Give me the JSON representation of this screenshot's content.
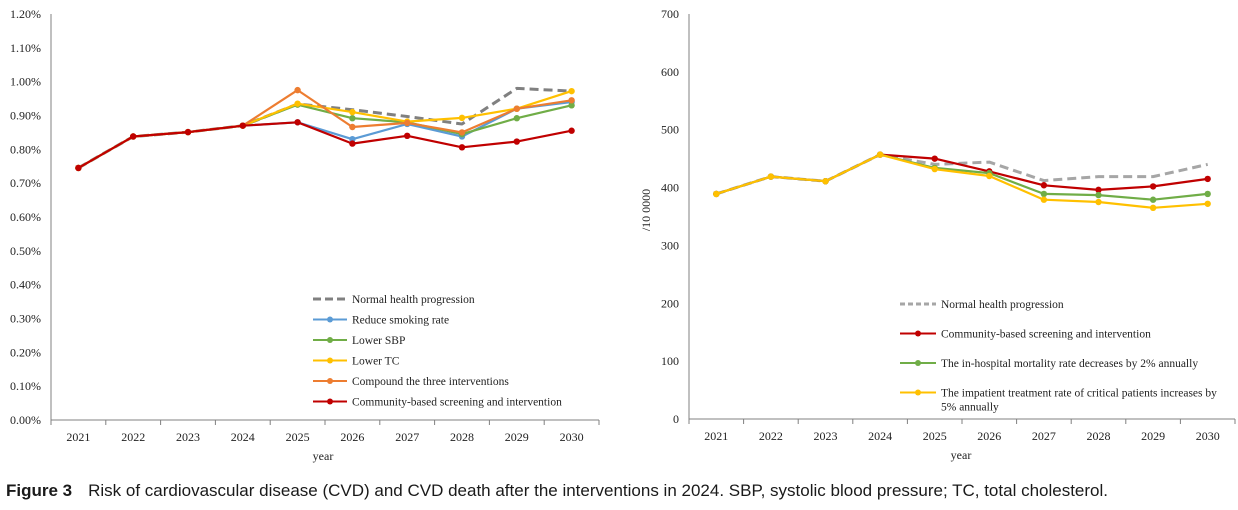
{
  "caption": {
    "label": "Figure 3",
    "text": "Risk of cardiovascular disease (CVD) and CVD death after the interventions in 2024. SBP, systolic blood pressure; TC, total cholesterol."
  },
  "chart_data": [
    {
      "type": "line",
      "xlabel": "year",
      "ylabel": "",
      "x": [
        "2021",
        "2022",
        "2023",
        "2024",
        "2025",
        "2026",
        "2027",
        "2028",
        "2029",
        "2030"
      ],
      "ylim": [
        0,
        1.2
      ],
      "y_ticks": [
        "0.00%",
        "0.10%",
        "0.20%",
        "0.30%",
        "0.40%",
        "0.50%",
        "0.60%",
        "0.70%",
        "0.80%",
        "0.90%",
        "1.00%",
        "1.10%",
        "1.20%"
      ],
      "y_unit": "%",
      "grid": false,
      "legend_position": "bottom-right",
      "series": [
        {
          "name": "Normal health progression",
          "color": "#808080",
          "style": "dashed",
          "marker": false,
          "values": [
            0.745,
            0.838,
            0.851,
            0.87,
            0.934,
            0.917,
            0.897,
            0.875,
            0.98,
            0.972
          ]
        },
        {
          "name": "Reduce smoking rate",
          "color": "#5b9bd5",
          "style": "solid",
          "marker": true,
          "values": [
            0.745,
            0.838,
            0.851,
            0.87,
            0.88,
            0.83,
            0.875,
            0.838,
            0.92,
            0.94
          ]
        },
        {
          "name": "Lower SBP",
          "color": "#70ad47",
          "style": "solid",
          "marker": true,
          "values": [
            0.745,
            0.838,
            0.851,
            0.87,
            0.932,
            0.892,
            0.88,
            0.845,
            0.892,
            0.93
          ]
        },
        {
          "name": "Lower TC",
          "color": "#ffc000",
          "style": "solid",
          "marker": true,
          "values": [
            0.745,
            0.838,
            0.851,
            0.87,
            0.935,
            0.91,
            0.882,
            0.893,
            0.92,
            0.972
          ]
        },
        {
          "name": "Compound the three interventions",
          "color": "#ed7d31",
          "style": "solid",
          "marker": true,
          "values": [
            0.745,
            0.838,
            0.851,
            0.87,
            0.975,
            0.866,
            0.878,
            0.85,
            0.92,
            0.945
          ]
        },
        {
          "name": "Community-based screening and intervention",
          "color": "#c00000",
          "style": "solid",
          "marker": true,
          "values": [
            0.745,
            0.838,
            0.851,
            0.87,
            0.88,
            0.817,
            0.84,
            0.806,
            0.823,
            0.855
          ]
        }
      ]
    },
    {
      "type": "line",
      "xlabel": "year",
      "ylabel": "/10 0000",
      "x": [
        "2021",
        "2022",
        "2023",
        "2024",
        "2025",
        "2026",
        "2027",
        "2028",
        "2029",
        "2030"
      ],
      "ylim": [
        0,
        700
      ],
      "y_ticks": [
        "0",
        "100",
        "200",
        "300",
        "400",
        "500",
        "600",
        "700"
      ],
      "grid": false,
      "legend_position": "bottom-right",
      "series": [
        {
          "name": "Normal health progression",
          "color": "#a6a6a6",
          "style": "dashed",
          "marker": false,
          "values": [
            389,
            419,
            411,
            457,
            440,
            444,
            412,
            419,
            419,
            440
          ]
        },
        {
          "name": "Community-based screening and intervention",
          "color": "#c00000",
          "style": "solid",
          "marker": true,
          "values": [
            389,
            419,
            411,
            457,
            450,
            428,
            404,
            396,
            402,
            415
          ]
        },
        {
          "name": "The in-hospital mortality rate decreases by 2% annually",
          "color": "#70ad47",
          "style": "solid",
          "marker": true,
          "values": [
            389,
            419,
            411,
            457,
            434,
            425,
            389,
            387,
            379,
            389
          ]
        },
        {
          "name": "The impatient treatment rate of critical patients increases by 5% annually",
          "color": "#ffc000",
          "style": "solid",
          "marker": true,
          "legend_lines": [
            "The impatient treatment rate of critical patients increases by",
            "5% annually"
          ],
          "values": [
            389,
            419,
            411,
            457,
            432,
            420,
            379,
            375,
            365,
            372
          ]
        }
      ]
    }
  ]
}
